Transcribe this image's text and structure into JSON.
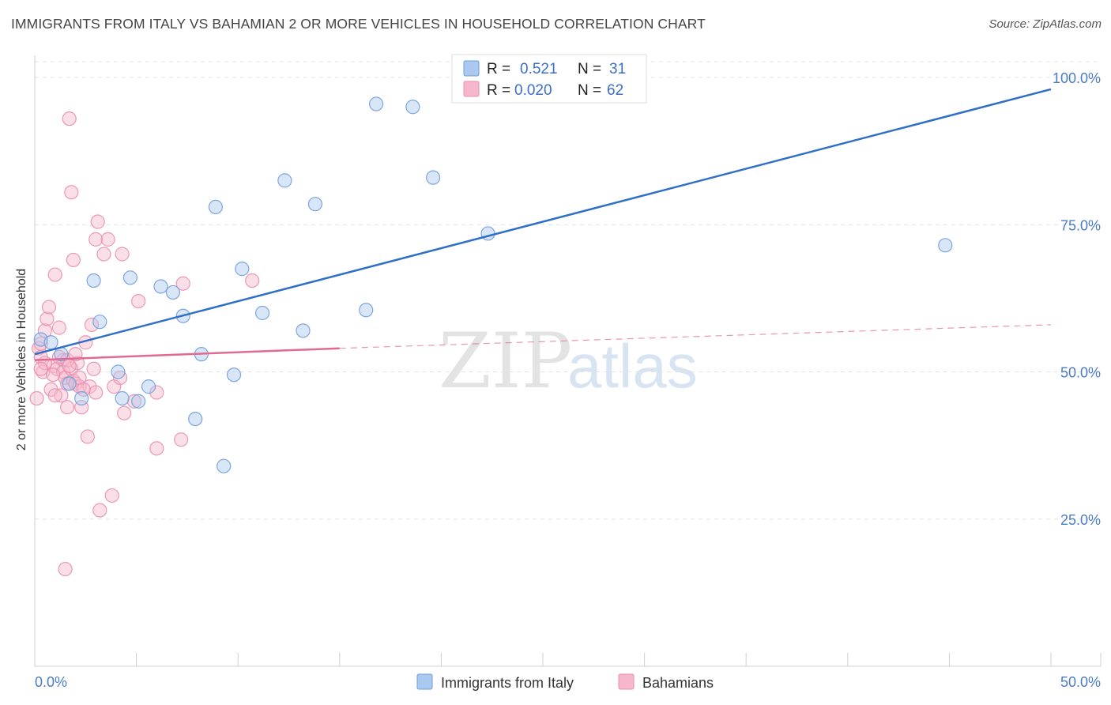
{
  "header": {
    "title": "IMMIGRANTS FROM ITALY VS BAHAMIAN 2 OR MORE VEHICLES IN HOUSEHOLD CORRELATION CHART",
    "source": "Source: ZipAtlas.com"
  },
  "watermark": {
    "zip": "ZIP",
    "atlas": "atlas"
  },
  "chart_data": {
    "type": "scatter",
    "title": "IMMIGRANTS FROM ITALY VS BAHAMIAN 2 OR MORE VEHICLES IN HOUSEHOLD CORRELATION CHART",
    "xlabel": "",
    "ylabel": "2 or more Vehicles in Household",
    "xlim": [
      0,
      50
    ],
    "ylim": [
      0,
      100
    ],
    "x_tick_labels": [
      "0.0%",
      "50.0%"
    ],
    "y_ticks": [
      25,
      50,
      75,
      100
    ],
    "y_tick_labels": [
      "25.0%",
      "50.0%",
      "75.0%",
      "100.0%"
    ],
    "legend_stats": [
      {
        "r_label": "R = ",
        "r_value": "0.521",
        "n_label": "N = ",
        "n_value": "31"
      },
      {
        "r_label": "R = ",
        "r_value": "0.020",
        "n_label": "N = ",
        "n_value": "62"
      }
    ],
    "colors": {
      "italy_fill": "#aac8f0",
      "italy_stroke": "#6f9fd8",
      "italy_line": "#2f6fc8",
      "bahamas_fill": "#f6b7cc",
      "bahamas_stroke": "#e88fae",
      "bahamas_line": "#e06a92",
      "stat_value": "#3a6fc6"
    },
    "series": [
      {
        "name": "Immigrants from Italy",
        "trend": {
          "x": [
            0,
            50
          ],
          "y": [
            53,
            98
          ]
        },
        "points": [
          [
            0.3,
            55.5
          ],
          [
            0.8,
            55.0
          ],
          [
            1.3,
            53.0
          ],
          [
            1.7,
            48.0
          ],
          [
            2.3,
            45.5
          ],
          [
            3.2,
            58.5
          ],
          [
            2.9,
            65.5
          ],
          [
            4.1,
            50.0
          ],
          [
            4.3,
            45.5
          ],
          [
            4.7,
            66.0
          ],
          [
            5.1,
            45.0
          ],
          [
            5.6,
            47.5
          ],
          [
            6.2,
            64.5
          ],
          [
            6.8,
            63.5
          ],
          [
            7.3,
            59.5
          ],
          [
            7.9,
            42.0
          ],
          [
            8.2,
            53.0
          ],
          [
            8.9,
            78.0
          ],
          [
            9.3,
            34.0
          ],
          [
            9.8,
            49.5
          ],
          [
            10.2,
            67.5
          ],
          [
            11.2,
            60.0
          ],
          [
            12.3,
            82.5
          ],
          [
            13.2,
            57.0
          ],
          [
            13.8,
            78.5
          ],
          [
            16.3,
            60.5
          ],
          [
            16.8,
            95.5
          ],
          [
            18.6,
            95.0
          ],
          [
            19.6,
            83.0
          ],
          [
            22.3,
            73.5
          ],
          [
            44.8,
            71.5
          ]
        ]
      },
      {
        "name": "Bahamians",
        "trend": {
          "x": [
            0,
            15
          ],
          "y": [
            52.0,
            54.0
          ]
        },
        "trend_dashed": {
          "x": [
            15,
            50
          ],
          "y": [
            54.0,
            58.0
          ]
        },
        "points": [
          [
            0.1,
            45.5
          ],
          [
            0.2,
            54.0
          ],
          [
            0.3,
            52.5
          ],
          [
            0.3,
            54.8
          ],
          [
            0.4,
            50.0
          ],
          [
            0.5,
            57.0
          ],
          [
            0.6,
            59.0
          ],
          [
            0.7,
            61.0
          ],
          [
            0.8,
            47.0
          ],
          [
            0.9,
            51.0
          ],
          [
            1.0,
            66.5
          ],
          [
            1.1,
            50.5
          ],
          [
            1.2,
            57.5
          ],
          [
            1.3,
            46.0
          ],
          [
            1.4,
            52.0
          ],
          [
            1.4,
            50.0
          ],
          [
            1.5,
            16.5
          ],
          [
            1.5,
            49.0
          ],
          [
            1.6,
            44.0
          ],
          [
            1.6,
            48.0
          ],
          [
            1.7,
            93.0
          ],
          [
            1.8,
            80.5
          ],
          [
            1.8,
            50.5
          ],
          [
            1.9,
            48.5
          ],
          [
            1.9,
            69.0
          ],
          [
            2.0,
            48.0
          ],
          [
            2.1,
            51.5
          ],
          [
            2.2,
            47.5
          ],
          [
            2.3,
            44.0
          ],
          [
            2.5,
            55.0
          ],
          [
            2.6,
            39.0
          ],
          [
            2.7,
            47.5
          ],
          [
            2.8,
            58.0
          ],
          [
            2.9,
            50.5
          ],
          [
            3.0,
            46.5
          ],
          [
            3.0,
            72.5
          ],
          [
            3.1,
            75.5
          ],
          [
            3.2,
            26.5
          ],
          [
            3.4,
            70.0
          ],
          [
            3.6,
            72.5
          ],
          [
            3.8,
            29.0
          ],
          [
            3.9,
            47.5
          ],
          [
            4.2,
            49.0
          ],
          [
            4.3,
            70.0
          ],
          [
            4.4,
            43.0
          ],
          [
            4.9,
            45.0
          ],
          [
            5.1,
            62.0
          ],
          [
            6.0,
            37.0
          ],
          [
            6.0,
            46.5
          ],
          [
            7.2,
            38.5
          ],
          [
            7.3,
            65.0
          ],
          [
            10.7,
            65.5
          ],
          [
            0.5,
            51.5
          ],
          [
            1.2,
            52.5
          ],
          [
            1.6,
            52.0
          ],
          [
            2.0,
            53.0
          ],
          [
            0.9,
            49.5
          ],
          [
            1.7,
            51.0
          ],
          [
            2.2,
            49.0
          ],
          [
            0.3,
            50.5
          ],
          [
            1.0,
            46.0
          ],
          [
            2.4,
            47.0
          ]
        ]
      }
    ]
  }
}
